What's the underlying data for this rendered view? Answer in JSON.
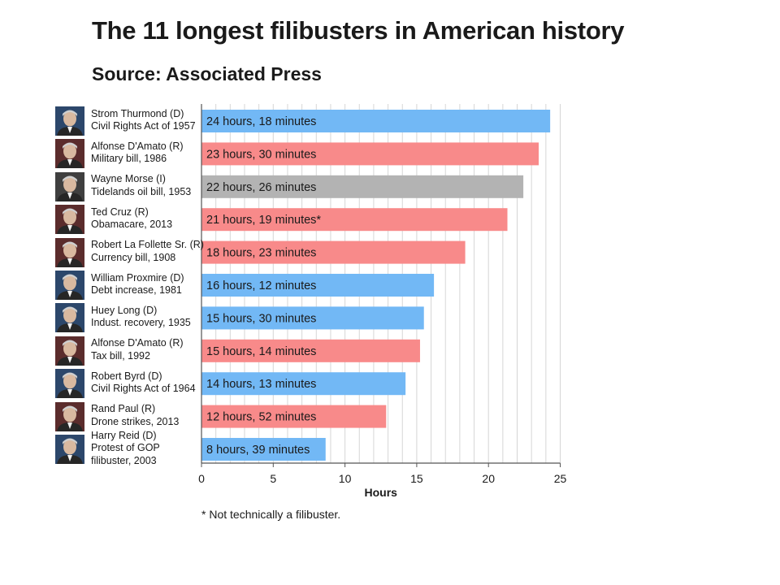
{
  "title": "The 11 longest filibusters in American history",
  "subtitle": "Source: Associated Press",
  "footnote": "* Not technically a filibuster.",
  "colors": {
    "D": "#72b8f5",
    "R": "#f88a8a",
    "I": "#b3b3b3",
    "grid": "#d6d6d6",
    "axis": "#555555"
  },
  "rows": [
    {
      "name": "Strom Thurmond (D)",
      "detail": "Civil Rights Act of 1957",
      "party": "D",
      "bar_label": "24 hours, 18 minutes"
    },
    {
      "name": "Alfonse D'Amato (R)",
      "detail": "Military bill, 1986",
      "party": "R",
      "bar_label": "23 hours, 30 minutes"
    },
    {
      "name": "Wayne Morse (I)",
      "detail": "Tidelands oil bill, 1953",
      "party": "I",
      "bar_label": "22 hours, 26 minutes"
    },
    {
      "name": "Ted Cruz (R)",
      "detail": "Obamacare, 2013",
      "party": "R",
      "bar_label": "21 hours, 19 minutes*"
    },
    {
      "name": "Robert La Follette Sr. (R)",
      "detail": "Currency bill, 1908",
      "party": "R",
      "bar_label": "18 hours, 23 minutes"
    },
    {
      "name": "William Proxmire (D)",
      "detail": "Debt increase, 1981",
      "party": "D",
      "bar_label": "16 hours, 12 minutes"
    },
    {
      "name": "Huey Long (D)",
      "detail": "Indust. recovery, 1935",
      "party": "D",
      "bar_label": "15 hours, 30 minutes"
    },
    {
      "name": "Alfonse D'Amato (R)",
      "detail": "Tax bill, 1992",
      "party": "R",
      "bar_label": "15 hours, 14 minutes"
    },
    {
      "name": "Robert Byrd (D)",
      "detail": "Civil Rights Act of 1964",
      "party": "D",
      "bar_label": "14 hours, 13 minutes"
    },
    {
      "name": "Rand Paul (R)",
      "detail": "Drone strikes, 2013",
      "party": "R",
      "bar_label": "12 hours, 52 minutes"
    },
    {
      "name": "Harry Reid (D)",
      "detail": "Protest of GOP",
      "detail2": "filibuster, 2003",
      "party": "D",
      "bar_label": "8 hours, 39 minutes"
    }
  ],
  "chart_data": {
    "type": "bar",
    "orientation": "horizontal",
    "title": "The 11 longest filibusters in American history",
    "subtitle": "Source: Associated Press",
    "xlabel": "Hours",
    "ylabel": "",
    "xlim": [
      0,
      25
    ],
    "xticks": [
      0,
      5,
      10,
      15,
      20,
      25
    ],
    "grid": "vertical, every 1 hour",
    "categories": [
      "Strom Thurmond (D) Civil Rights Act of 1957",
      "Alfonse D'Amato (R) Military bill, 1986",
      "Wayne Morse (I) Tidelands oil bill, 1953",
      "Ted Cruz (R) Obamacare, 2013",
      "Robert La Follette Sr. (R) Currency bill, 1908",
      "William Proxmire (D) Debt increase, 1981",
      "Huey Long (D) Indust. recovery, 1935",
      "Alfonse D'Amato (R) Tax bill, 1992",
      "Robert Byrd (D) Civil Rights Act of 1964",
      "Rand Paul (R) Drone strikes, 2013",
      "Harry Reid (D) Protest of GOP filibuster, 2003"
    ],
    "values": [
      24.3,
      23.5,
      22.43,
      21.32,
      18.38,
      16.2,
      15.5,
      15.23,
      14.22,
      12.87,
      8.65
    ],
    "data_labels": [
      "24 hours, 18 minutes",
      "23 hours, 30 minutes",
      "22 hours, 26 minutes",
      "21 hours, 19 minutes*",
      "18 hours, 23 minutes",
      "16 hours, 12 minutes",
      "15 hours, 30 minutes",
      "15 hours, 14 minutes",
      "14 hours, 13 minutes",
      "12 hours, 52 minutes",
      "8 hours, 39 minutes"
    ],
    "bar_colors_by_party": {
      "D": "#72b8f5",
      "R": "#f88a8a",
      "I": "#b3b3b3"
    },
    "footnote": "* Not technically a filibuster."
  }
}
